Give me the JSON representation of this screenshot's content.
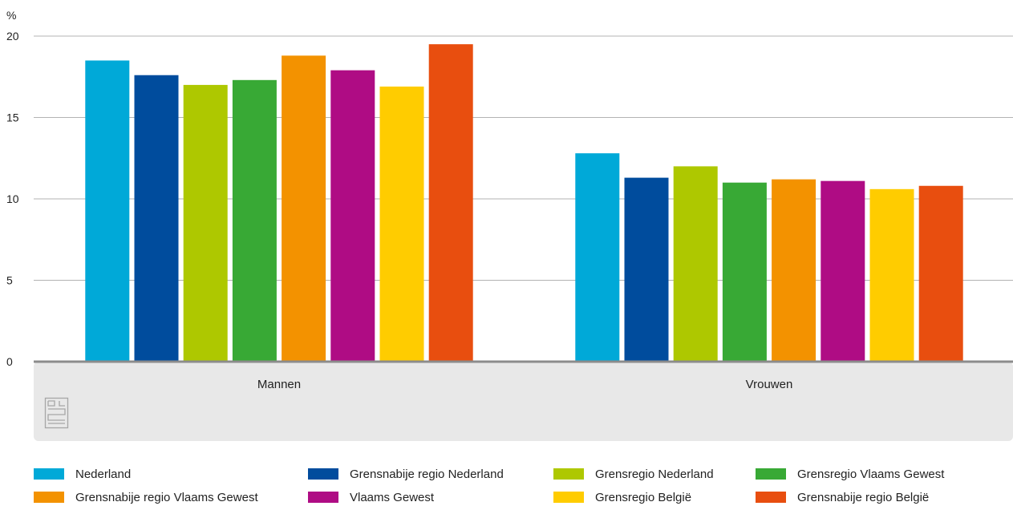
{
  "chart_data": {
    "type": "bar",
    "unit_label": "%",
    "categories": [
      "Mannen",
      "Vrouwen"
    ],
    "ylim": [
      0,
      20
    ],
    "yticks": [
      0,
      5,
      10,
      15,
      20
    ],
    "grid": true,
    "legend_position": "bottom",
    "series": [
      {
        "name": "Nederland",
        "color": "#00a9d8",
        "values": [
          18.5,
          12.8
        ]
      },
      {
        "name": "Grensnabije regio Nederland",
        "color": "#004c9d",
        "values": [
          17.6,
          11.3
        ]
      },
      {
        "name": "Grensregio Nederland",
        "color": "#aec800",
        "values": [
          17.0,
          12.0
        ]
      },
      {
        "name": "Grensregio Vlaams Gewest",
        "color": "#38a935",
        "values": [
          17.3,
          11.0
        ]
      },
      {
        "name": "Grensnabije regio Vlaams Gewest",
        "color": "#f39200",
        "values": [
          18.8,
          11.2
        ]
      },
      {
        "name": "Vlaams Gewest",
        "color": "#af0c84",
        "values": [
          17.9,
          11.1
        ]
      },
      {
        "name": "Grensregio België",
        "color": "#ffcc00",
        "values": [
          16.9,
          10.6
        ]
      },
      {
        "name": "Grensnabije regio België",
        "color": "#e84e0f",
        "values": [
          19.5,
          10.8
        ]
      }
    ]
  },
  "colors": {
    "gridline": "#b3b3b3",
    "baseline": "#8c8c8c",
    "footer_band": "#e8e8e8",
    "logo": "#a6a6a6"
  },
  "logo_icon": "cbs-logo-icon"
}
